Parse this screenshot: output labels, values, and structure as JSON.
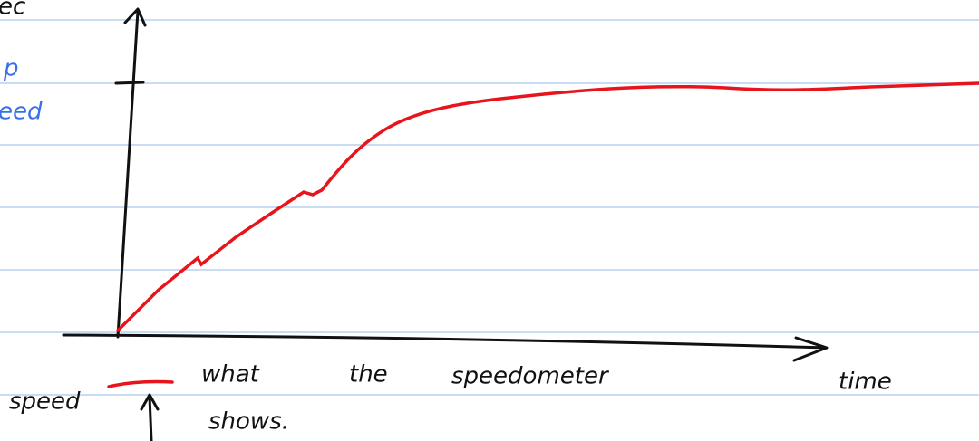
{
  "y_axis_label_fragment": "ec",
  "side_note": [
    "p",
    "eed"
  ],
  "legend": {
    "label": "speed",
    "description": [
      "what",
      "the",
      "speedometer",
      "shows."
    ]
  },
  "x_axis_label": "time"
}
